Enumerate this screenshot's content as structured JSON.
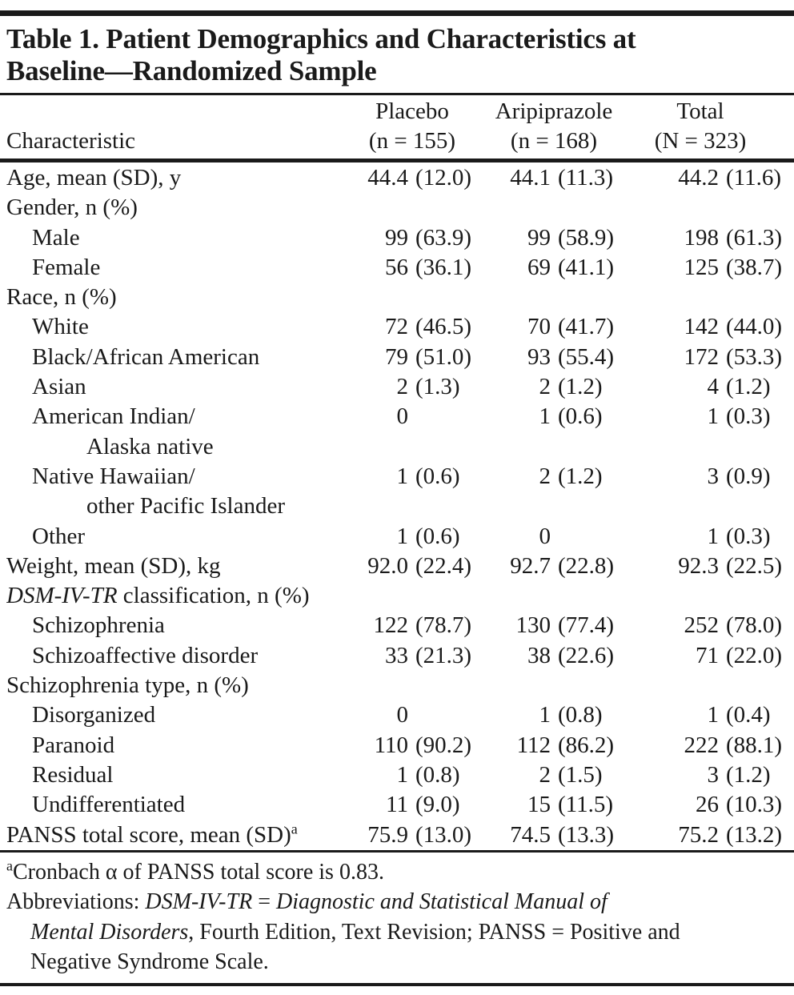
{
  "title": {
    "lines": [
      "Table 1. Patient Demographics and Characteristics at",
      "Baseline—Randomized Sample"
    ]
  },
  "header": {
    "characteristic": "Characteristic",
    "groups": [
      {
        "name": "Placebo",
        "n": "(n = 155)"
      },
      {
        "name": "Aripiprazole",
        "n": "(n = 168)"
      },
      {
        "name": "Total",
        "n": "(N = 323)"
      }
    ]
  },
  "rows": [
    {
      "type": "data",
      "indent": 0,
      "label": "Age, mean (SD), y",
      "cells": [
        {
          "n": "44.4",
          "p": "(12.0)"
        },
        {
          "n": "44.1",
          "p": "(11.3)"
        },
        {
          "n": "44.2",
          "p": "(11.6)"
        }
      ]
    },
    {
      "type": "group",
      "indent": 0,
      "label": "Gender, n (%)"
    },
    {
      "type": "data",
      "indent": 1,
      "label": "Male",
      "cells": [
        {
          "n": "99",
          "p": "(63.9)"
        },
        {
          "n": "99",
          "p": "(58.9)"
        },
        {
          "n": "198",
          "p": "(61.3)"
        }
      ]
    },
    {
      "type": "data",
      "indent": 1,
      "label": "Female",
      "cells": [
        {
          "n": "56",
          "p": "(36.1)"
        },
        {
          "n": "69",
          "p": "(41.1)"
        },
        {
          "n": "125",
          "p": "(38.7)"
        }
      ]
    },
    {
      "type": "group",
      "indent": 0,
      "label": "Race, n (%)"
    },
    {
      "type": "data",
      "indent": 1,
      "label": "White",
      "cells": [
        {
          "n": "72",
          "p": "(46.5)"
        },
        {
          "n": "70",
          "p": "(41.7)"
        },
        {
          "n": "142",
          "p": "(44.0)"
        }
      ]
    },
    {
      "type": "data",
      "indent": 1,
      "label": "Black/African American",
      "cells": [
        {
          "n": "79",
          "p": "(51.0)"
        },
        {
          "n": "93",
          "p": "(55.4)"
        },
        {
          "n": "172",
          "p": "(53.3)"
        }
      ]
    },
    {
      "type": "data",
      "indent": 1,
      "label": "Asian",
      "cells": [
        {
          "n": "2",
          "p": "(1.3)"
        },
        {
          "n": "2",
          "p": "(1.2)"
        },
        {
          "n": "4",
          "p": "(1.2)"
        }
      ]
    },
    {
      "type": "data",
      "indent": 1,
      "label": "American Indian/",
      "label2": "Alaska native",
      "cells": [
        {
          "n": "0",
          "p": ""
        },
        {
          "n": "1",
          "p": "(0.6)"
        },
        {
          "n": "1",
          "p": "(0.3)"
        }
      ]
    },
    {
      "type": "data",
      "indent": 1,
      "label": "Native Hawaiian/",
      "label2": "other Pacific Islander",
      "cells": [
        {
          "n": "1",
          "p": "(0.6)"
        },
        {
          "n": "2",
          "p": "(1.2)"
        },
        {
          "n": "3",
          "p": "(0.9)"
        }
      ]
    },
    {
      "type": "data",
      "indent": 1,
      "label": "Other",
      "cells": [
        {
          "n": "1",
          "p": "(0.6)"
        },
        {
          "n": "0",
          "p": ""
        },
        {
          "n": "1",
          "p": "(0.3)"
        }
      ]
    },
    {
      "type": "data",
      "indent": 0,
      "label": "Weight, mean (SD), kg",
      "cells": [
        {
          "n": "92.0",
          "p": "(22.4)"
        },
        {
          "n": "92.7",
          "p": "(22.8)"
        },
        {
          "n": "92.3",
          "p": "(22.5)"
        }
      ]
    },
    {
      "type": "group",
      "indent": 0,
      "label_italic": "DSM-IV-TR",
      "label": " classification, n (%)"
    },
    {
      "type": "data",
      "indent": 1,
      "label": "Schizophrenia",
      "cells": [
        {
          "n": "122",
          "p": "(78.7)"
        },
        {
          "n": "130",
          "p": "(77.4)"
        },
        {
          "n": "252",
          "p": "(78.0)"
        }
      ]
    },
    {
      "type": "data",
      "indent": 1,
      "label": "Schizoaffective disorder",
      "cells": [
        {
          "n": "33",
          "p": "(21.3)"
        },
        {
          "n": "38",
          "p": "(22.6)"
        },
        {
          "n": "71",
          "p": "(22.0)"
        }
      ]
    },
    {
      "type": "group",
      "indent": 0,
      "label": "Schizophrenia type, n (%)"
    },
    {
      "type": "data",
      "indent": 1,
      "label": "Disorganized",
      "cells": [
        {
          "n": "0",
          "p": ""
        },
        {
          "n": "1",
          "p": "(0.8)"
        },
        {
          "n": "1",
          "p": "(0.4)"
        }
      ]
    },
    {
      "type": "data",
      "indent": 1,
      "label": "Paranoid",
      "cells": [
        {
          "n": "110",
          "p": "(90.2)"
        },
        {
          "n": "112",
          "p": "(86.2)"
        },
        {
          "n": "222",
          "p": "(88.1)"
        }
      ]
    },
    {
      "type": "data",
      "indent": 1,
      "label": "Residual",
      "cells": [
        {
          "n": "1",
          "p": "(0.8)"
        },
        {
          "n": "2",
          "p": "(1.5)"
        },
        {
          "n": "3",
          "p": "(1.2)"
        }
      ]
    },
    {
      "type": "data",
      "indent": 1,
      "label": "Undifferentiated",
      "cells": [
        {
          "n": "11",
          "p": "(9.0)"
        },
        {
          "n": "15",
          "p": "(11.5)"
        },
        {
          "n": "26",
          "p": "(10.3)"
        }
      ]
    },
    {
      "type": "data",
      "indent": 0,
      "label": "PANSS total score, mean (SD)",
      "sup": "a",
      "cells": [
        {
          "n": "75.9",
          "p": "(13.0)"
        },
        {
          "n": "74.5",
          "p": "(13.3)"
        },
        {
          "n": "75.2",
          "p": "(13.2)"
        }
      ]
    }
  ],
  "footnotes": [
    {
      "sup": "a",
      "indent": 0,
      "segments": [
        {
          "t": "Cronbach α of PANSS total score is 0.83.",
          "i": false
        }
      ]
    },
    {
      "indent": 0,
      "segments": [
        {
          "t": "Abbreviations: ",
          "i": false
        },
        {
          "t": "DSM-IV-TR",
          "i": true
        },
        {
          "t": " = ",
          "i": false
        },
        {
          "t": "Diagnostic and Statistical Manual of",
          "i": true
        }
      ]
    },
    {
      "indent": 1,
      "segments": [
        {
          "t": "Mental Disorders",
          "i": true
        },
        {
          "t": ", Fourth Edition, Text Revision; PANSS = Positive and",
          "i": false
        }
      ]
    },
    {
      "indent": 1,
      "segments": [
        {
          "t": "Negative Syndrome Scale.",
          "i": false
        }
      ]
    }
  ],
  "colors": {
    "text": "#1a1a1a",
    "rule": "#1a1a1a",
    "background": "#ffffff"
  }
}
